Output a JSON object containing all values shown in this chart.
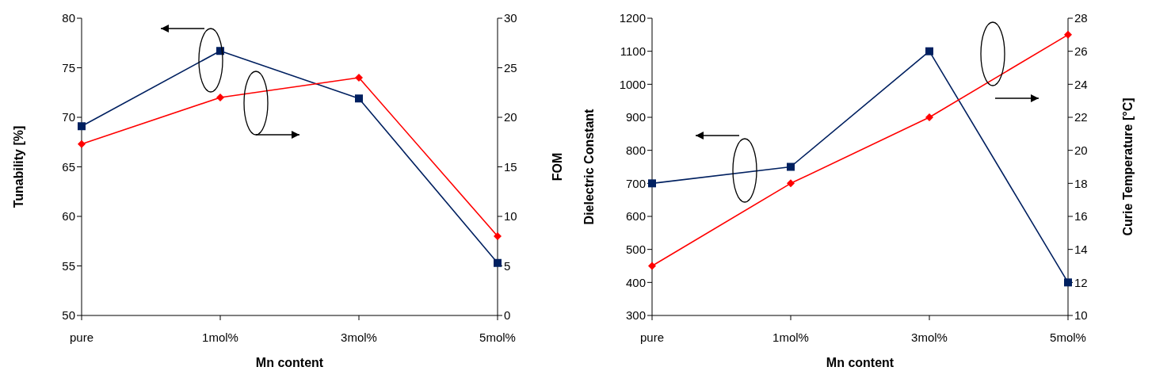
{
  "chart_data": [
    {
      "type": "line",
      "categories": [
        "pure",
        "1mol%",
        "3mol%",
        "5mol%"
      ],
      "xlabel": "Mn content",
      "ylabel": "Tunability [%]",
      "y2label": "FOM",
      "ylim": [
        50,
        80
      ],
      "yticks": [
        50,
        55,
        60,
        65,
        70,
        75,
        80
      ],
      "y2lim": [
        0,
        30
      ],
      "y2ticks": [
        0,
        5,
        10,
        15,
        20,
        25,
        30
      ],
      "series": [
        {
          "color": "#002060",
          "marker": "square",
          "values": [
            69.1,
            76.7,
            71.9,
            55.3
          ]
        },
        {
          "color": "#ff0000",
          "marker": "diamond",
          "axis": "y2",
          "values": [
            17.3,
            22,
            24,
            8
          ]
        }
      ]
    },
    {
      "type": "line",
      "categories": [
        "pure",
        "1mol%",
        "3mol%",
        "5mol%"
      ],
      "xlabel": "Mn content",
      "ylabel": "Dielectric Constant",
      "y2label": "Curie Temperature [°C]",
      "ylim": [
        300,
        1200
      ],
      "yticks": [
        300,
        400,
        500,
        600,
        700,
        800,
        900,
        1000,
        1100,
        1200
      ],
      "y2lim": [
        10,
        28
      ],
      "y2ticks": [
        10,
        12,
        14,
        16,
        18,
        20,
        22,
        24,
        26,
        28
      ],
      "series": [
        {
          "color": "#002060",
          "marker": "square",
          "values": [
            700,
            750,
            1100,
            400
          ]
        },
        {
          "color": "#ff0000",
          "marker": "diamond",
          "axis": "y2",
          "values": [
            13,
            18,
            22,
            27
          ]
        }
      ]
    }
  ]
}
